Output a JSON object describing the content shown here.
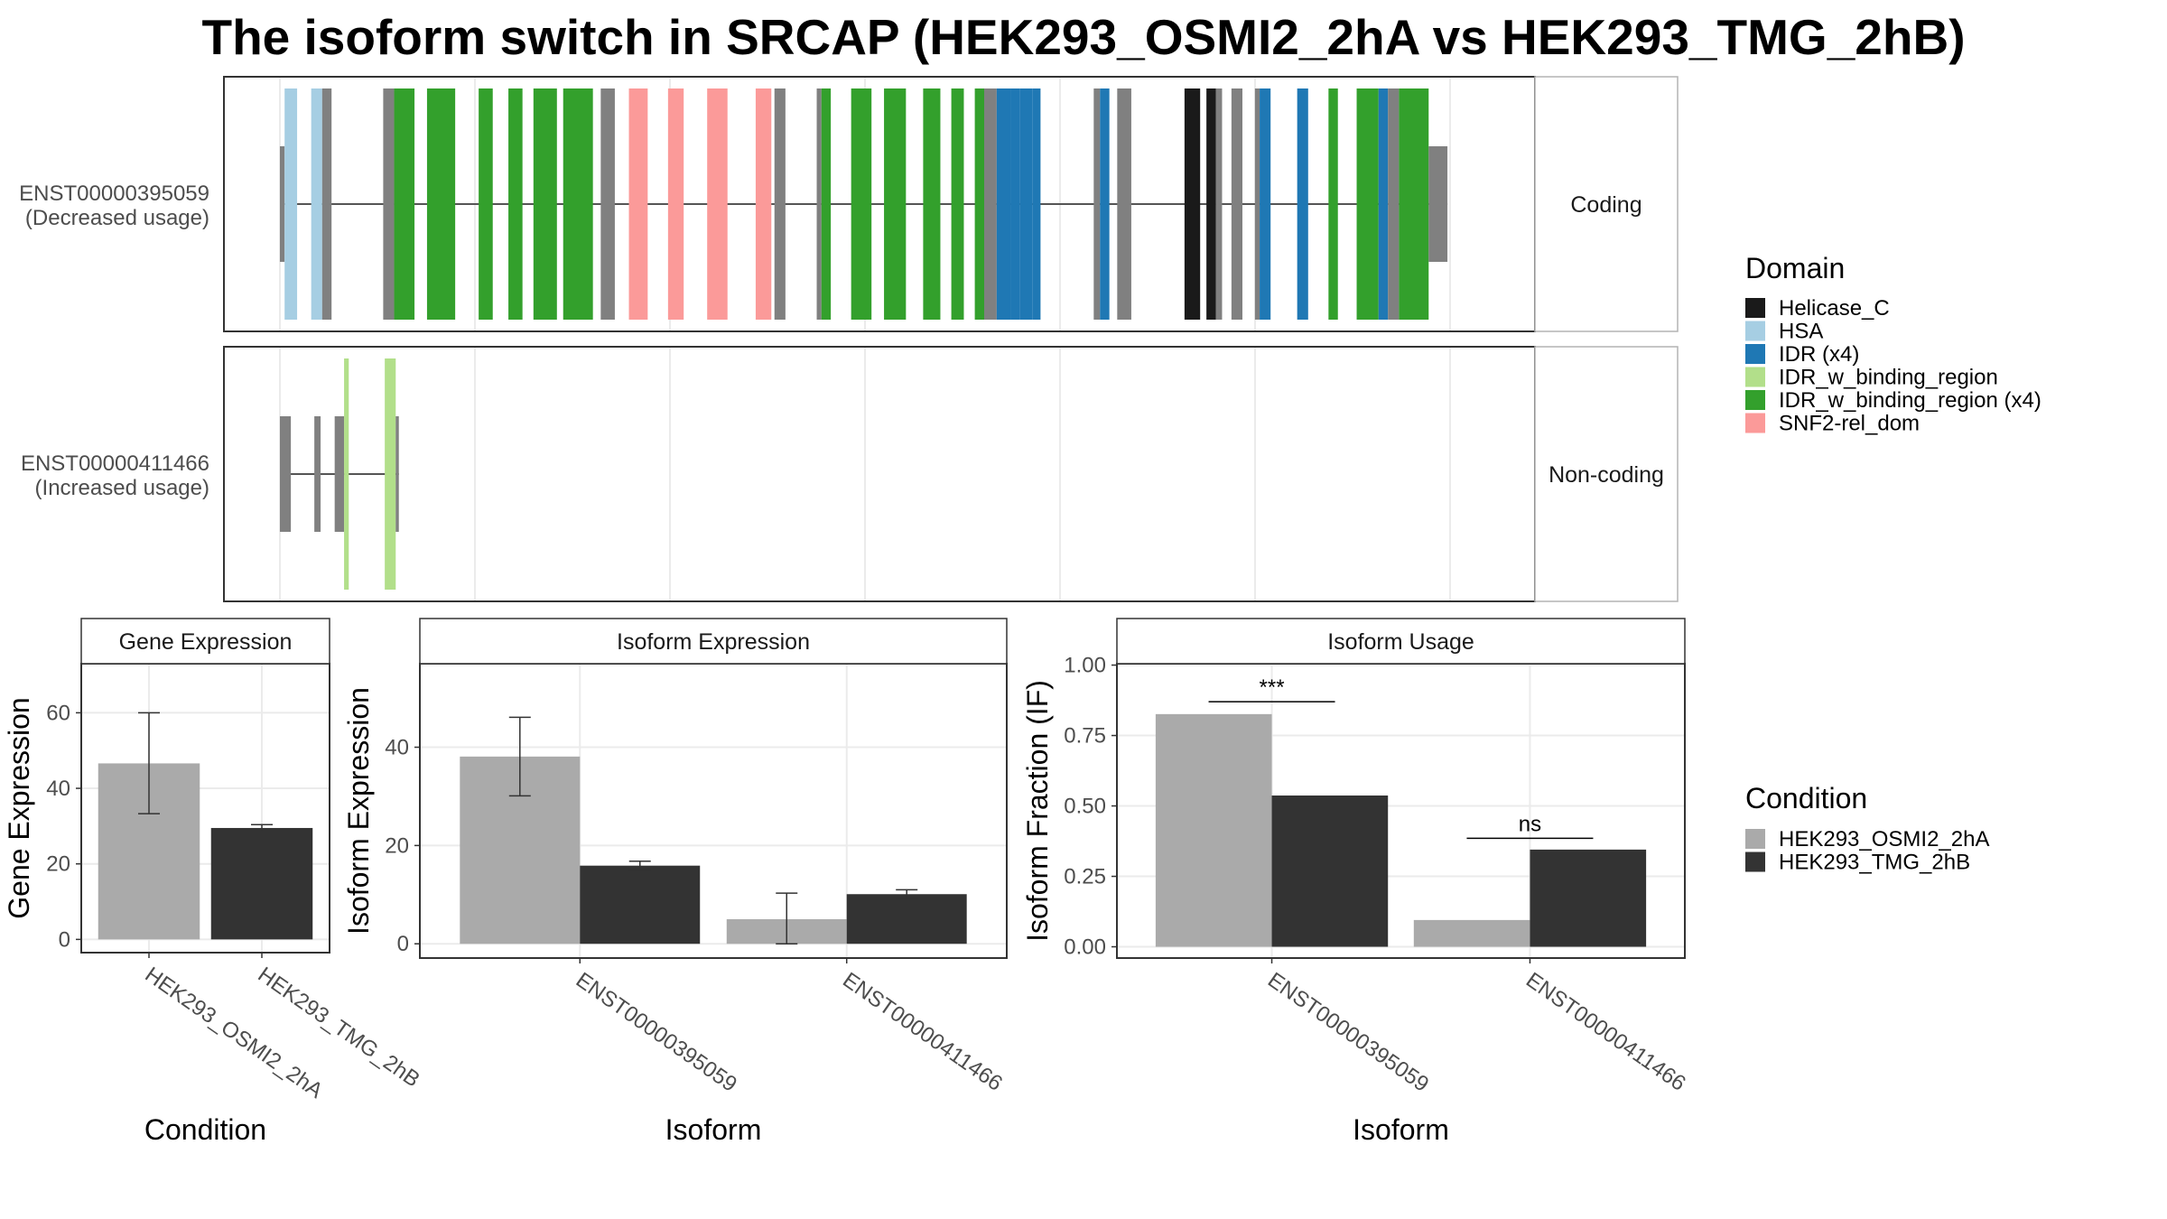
{
  "title": "The isoform switch in SRCAP (HEK293_OSMI2_2hA vs HEK293_TMG_2hB)",
  "legend_domain": {
    "title": "Domain",
    "items": [
      {
        "label": "Helicase_C",
        "color": "#1a1a1a"
      },
      {
        "label": "HSA",
        "color": "#a6cee3"
      },
      {
        "label": "IDR (x4)",
        "color": "#1f78b4"
      },
      {
        "label": "IDR_w_binding_region",
        "color": "#b2df8a"
      },
      {
        "label": "IDR_w_binding_region (x4)",
        "color": "#33a02c"
      },
      {
        "label": "SNF2-rel_dom",
        "color": "#fb9a99"
      }
    ]
  },
  "legend_condition": {
    "title": "Condition",
    "items": [
      {
        "label": "HEK293_OSMI2_2hA",
        "color": "#aaaaaa"
      },
      {
        "label": "HEK293_TMG_2hB",
        "color": "#333333"
      }
    ]
  },
  "colors": {
    "utr_exon": "#808080",
    "intron_line": "#555555",
    "panel_border": "#333333",
    "grid": "#ebebeb"
  },
  "chart_data": [
    {
      "type": "transcript_structure",
      "transcripts": [
        {
          "name": "ENST00000395059",
          "usage": "(Decreased usage)",
          "coding_label": "Coding",
          "exons": [
            {
              "start": 0.0,
              "end": 0.3,
              "kind": "utr"
            },
            {
              "start": 0.3,
              "end": 1.1,
              "domain": "HSA"
            },
            {
              "start": 2.0,
              "end": 2.7,
              "domain": "HSA"
            },
            {
              "start": 2.7,
              "end": 3.3,
              "kind": "cds"
            },
            {
              "start": 6.6,
              "end": 7.3,
              "kind": "cds"
            },
            {
              "start": 7.3,
              "end": 8.6,
              "domain": "IDR_w_binding_region (x4)"
            },
            {
              "start": 9.4,
              "end": 11.2,
              "domain": "IDR_w_binding_region (x4)"
            },
            {
              "start": 12.7,
              "end": 13.6,
              "domain": "IDR_w_binding_region (x4)"
            },
            {
              "start": 14.6,
              "end": 15.5,
              "domain": "IDR_w_binding_region (x4)"
            },
            {
              "start": 16.2,
              "end": 17.7,
              "domain": "IDR_w_binding_region (x4)"
            },
            {
              "start": 18.1,
              "end": 20.0,
              "domain": "IDR_w_binding_region (x4)"
            },
            {
              "start": 20.5,
              "end": 21.4,
              "kind": "cds"
            },
            {
              "start": 22.3,
              "end": 23.5,
              "domain": "SNF2-rel_dom"
            },
            {
              "start": 24.8,
              "end": 25.8,
              "domain": "SNF2-rel_dom"
            },
            {
              "start": 27.3,
              "end": 28.6,
              "domain": "SNF2-rel_dom"
            },
            {
              "start": 30.4,
              "end": 31.4,
              "domain": "SNF2-rel_dom"
            },
            {
              "start": 31.6,
              "end": 32.3,
              "kind": "cds"
            },
            {
              "start": 34.3,
              "end": 34.6,
              "kind": "cds"
            },
            {
              "start": 34.6,
              "end": 35.2,
              "domain": "IDR_w_binding_region (x4)"
            },
            {
              "start": 36.5,
              "end": 37.8,
              "domain": "IDR_w_binding_region (x4)"
            },
            {
              "start": 38.6,
              "end": 40.0,
              "domain": "IDR_w_binding_region (x4)"
            },
            {
              "start": 41.1,
              "end": 42.2,
              "domain": "IDR_w_binding_region (x4)"
            },
            {
              "start": 42.9,
              "end": 43.7,
              "domain": "IDR_w_binding_region (x4)"
            },
            {
              "start": 44.4,
              "end": 45.0,
              "domain": "IDR_w_binding_region (x4)"
            },
            {
              "start": 45.0,
              "end": 45.8,
              "kind": "cds"
            },
            {
              "start": 45.8,
              "end": 46.7,
              "domain": "IDR (x4)"
            },
            {
              "start": 46.7,
              "end": 47.3,
              "domain": "IDR (x4)"
            },
            {
              "start": 47.3,
              "end": 48.1,
              "domain": "IDR (x4)"
            },
            {
              "start": 48.1,
              "end": 48.6,
              "domain": "IDR (x4)"
            },
            {
              "start": 52.0,
              "end": 52.4,
              "kind": "cds"
            },
            {
              "start": 52.4,
              "end": 53.0,
              "domain": "IDR (x4)"
            },
            {
              "start": 53.5,
              "end": 54.4,
              "kind": "cds"
            },
            {
              "start": 57.8,
              "end": 58.8,
              "domain": "Helicase_C"
            },
            {
              "start": 59.2,
              "end": 59.8,
              "domain": "Helicase_C"
            },
            {
              "start": 59.8,
              "end": 60.2,
              "kind": "cds"
            },
            {
              "start": 60.8,
              "end": 61.5,
              "kind": "cds"
            },
            {
              "start": 62.3,
              "end": 62.6,
              "kind": "cds"
            },
            {
              "start": 62.6,
              "end": 63.3,
              "domain": "IDR (x4)"
            },
            {
              "start": 65.0,
              "end": 65.7,
              "domain": "IDR (x4)"
            },
            {
              "start": 67.0,
              "end": 67.6,
              "domain": "IDR_w_binding_region (x4)"
            },
            {
              "start": 68.8,
              "end": 70.2,
              "domain": "IDR_w_binding_region (x4)"
            },
            {
              "start": 70.2,
              "end": 70.8,
              "domain": "IDR (x4)"
            },
            {
              "start": 70.8,
              "end": 71.5,
              "kind": "cds"
            },
            {
              "start": 71.5,
              "end": 73.4,
              "domain": "IDR_w_binding_region (x4)"
            },
            {
              "start": 73.4,
              "end": 74.6,
              "kind": "utr"
            }
          ]
        },
        {
          "name": "ENST00000411466",
          "usage": "(Increased usage)",
          "coding_label": "Non-coding",
          "exons": [
            {
              "start": 0.0,
              "end": 0.7,
              "kind": "utr"
            },
            {
              "start": 2.2,
              "end": 2.6,
              "kind": "utr"
            },
            {
              "start": 3.5,
              "end": 4.1,
              "kind": "utr"
            },
            {
              "start": 4.1,
              "end": 4.4,
              "domain": "IDR_w_binding_region"
            },
            {
              "start": 6.7,
              "end": 7.4,
              "domain": "IDR_w_binding_region"
            },
            {
              "start": 7.4,
              "end": 7.6,
              "kind": "utr"
            }
          ]
        }
      ]
    },
    {
      "type": "bar",
      "strip": "Gene Expression",
      "xlabel": "Condition",
      "ylabel": "Gene Expression",
      "categories": [
        "HEK293_OSMI2_2hA",
        "HEK293_TMG_2hB"
      ],
      "values": [
        46.6,
        29.5
      ],
      "error": [
        [
          33.3,
          60.0
        ],
        [
          28.6,
          30.4
        ]
      ],
      "ylim": [
        -3.5,
        73
      ],
      "yticks": [
        0,
        20,
        40,
        60
      ]
    },
    {
      "type": "bar",
      "strip": "Isoform Expression",
      "xlabel": "Isoform",
      "ylabel": "Isoform Expression",
      "categories": [
        "ENST00000395059",
        "ENST00000411466"
      ],
      "series": [
        {
          "name": "HEK293_OSMI2_2hA",
          "values": [
            38.1,
            5.0
          ],
          "error": [
            [
              30.1,
              46.1
            ],
            [
              0.0,
              10.3
            ]
          ]
        },
        {
          "name": "HEK293_TMG_2hB",
          "values": [
            15.9,
            10.1
          ],
          "error": [
            [
              15.0,
              16.8
            ],
            [
              9.2,
              11.0
            ]
          ]
        }
      ],
      "ylim": [
        -2.9,
        57
      ],
      "yticks": [
        0,
        20,
        40
      ]
    },
    {
      "type": "bar",
      "strip": "Isoform Usage",
      "xlabel": "Isoform",
      "ylabel": "Isoform Fraction (IF)",
      "categories": [
        "ENST00000395059",
        "ENST00000411466"
      ],
      "series": [
        {
          "name": "HEK293_OSMI2_2hA",
          "values": [
            0.826,
            0.095
          ]
        },
        {
          "name": "HEK293_TMG_2hB",
          "values": [
            0.537,
            0.345
          ]
        }
      ],
      "significance": [
        {
          "category": "ENST00000395059",
          "label": "***",
          "y": 0.87
        },
        {
          "category": "ENST00000411466",
          "label": "ns",
          "y": 0.385
        }
      ],
      "ylim": [
        -0.04,
        1.005
      ],
      "yticks": [
        0.0,
        0.25,
        0.5,
        0.75,
        1.0
      ],
      "yticklabels": [
        "0.00",
        "0.25",
        "0.50",
        "0.75",
        "1.00"
      ]
    }
  ]
}
